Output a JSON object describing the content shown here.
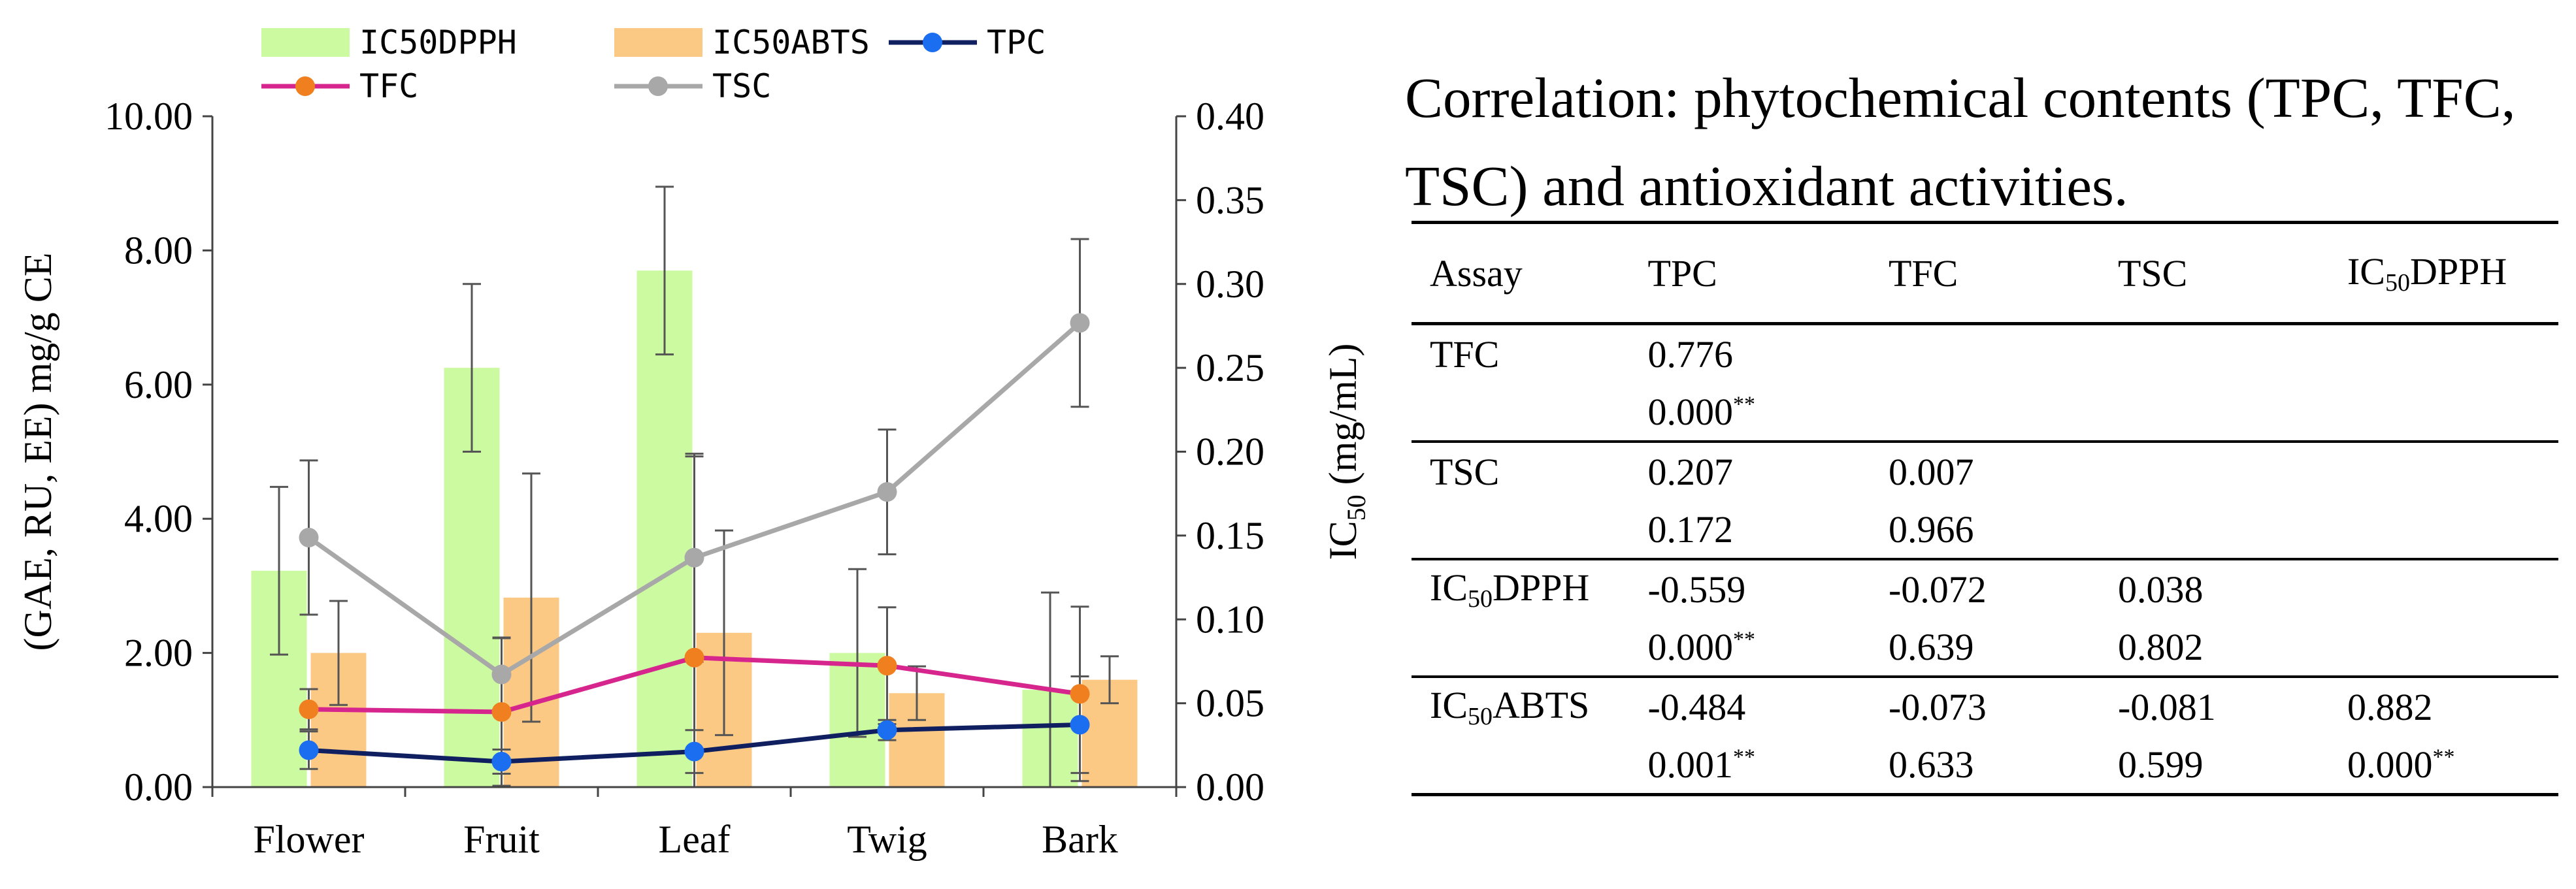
{
  "chart_data": {
    "type": "bar",
    "categories": [
      "Flower",
      "Fruit",
      "Leaf",
      "Twig",
      "Bark"
    ],
    "y_left": {
      "label": "(GAE, RU, EE) mg/g CE",
      "ylim": [
        0,
        10
      ],
      "ticks": [
        "0.00",
        "2.00",
        "4.00",
        "6.00",
        "8.00",
        "10.00"
      ]
    },
    "y_right": {
      "label_main": "IC",
      "label_sub": "50",
      "label_rest": " (mg/mL)",
      "ylim": [
        0,
        0.4
      ],
      "ticks": [
        "0.00",
        "0.05",
        "0.10",
        "0.15",
        "0.20",
        "0.25",
        "0.30",
        "0.35",
        "0.40"
      ]
    },
    "grid": false,
    "legend_position": "top",
    "bars": [
      {
        "name": "IC50DPPH",
        "axis": "right",
        "color": "#ccfaa0",
        "values": [
          0.129,
          0.25,
          0.308,
          0.08,
          0.058
        ],
        "errors": [
          0.05,
          0.05,
          0.05,
          0.05,
          0.058
        ]
      },
      {
        "name": "IC50ABTS",
        "axis": "right",
        "color": "#fcc985",
        "values": [
          0.08,
          0.113,
          0.092,
          0.056,
          0.064
        ],
        "errors": [
          0.031,
          0.074,
          0.061,
          0.016,
          0.014
        ]
      }
    ],
    "lines": [
      {
        "name": "TPC",
        "axis": "left",
        "color": "#0f1f60",
        "marker": "#1b6ef0",
        "values": [
          0.55,
          0.38,
          0.53,
          0.85,
          0.93
        ],
        "errors": [
          0.28,
          0.18,
          0.32,
          0.15,
          0.72
        ]
      },
      {
        "name": "TFC",
        "axis": "left",
        "color": "#d6268e",
        "marker": "#f07f20",
        "values": [
          1.16,
          1.12,
          1.93,
          1.81,
          1.39
        ],
        "errors": [
          0.3,
          1.1,
          3.0,
          0.87,
          1.3
        ]
      },
      {
        "name": "TSC",
        "axis": "left",
        "color": "#a8a8a8",
        "marker": "#a8a8a8",
        "values": [
          3.72,
          1.68,
          3.42,
          4.4,
          6.92
        ],
        "errors": [
          1.15,
          0.55,
          1.55,
          0.93,
          1.25
        ]
      }
    ]
  },
  "correlation": {
    "title": "Correlation: phytochemical contents (TPC, TFC, TSC) and antioxidant activities.",
    "significance": "**",
    "columns": [
      {
        "main": "Assay",
        "sub": "",
        "rest": ""
      },
      {
        "main": "TPC",
        "sub": "",
        "rest": ""
      },
      {
        "main": "TFC",
        "sub": "",
        "rest": ""
      },
      {
        "main": "TSC",
        "sub": "",
        "rest": ""
      },
      {
        "main": "IC",
        "sub": "50",
        "rest": "DPPH"
      }
    ],
    "rows": [
      {
        "label": {
          "main": "TFC",
          "sub": "",
          "rest": ""
        },
        "r": [
          "0.776",
          "",
          "",
          ""
        ],
        "p": [
          "0.000",
          "",
          "",
          ""
        ],
        "sig": [
          true,
          false,
          false,
          false
        ]
      },
      {
        "label": {
          "main": "TSC",
          "sub": "",
          "rest": ""
        },
        "r": [
          "0.207",
          "0.007",
          "",
          ""
        ],
        "p": [
          "0.172",
          "0.966",
          "",
          ""
        ],
        "sig": [
          false,
          false,
          false,
          false
        ]
      },
      {
        "label": {
          "main": "IC",
          "sub": "50",
          "rest": "DPPH"
        },
        "r": [
          "-0.559",
          "-0.072",
          "0.038",
          ""
        ],
        "p": [
          "0.000",
          "0.639",
          "0.802",
          ""
        ],
        "sig": [
          true,
          false,
          false,
          false
        ]
      },
      {
        "label": {
          "main": "IC",
          "sub": "50",
          "rest": "ABTS"
        },
        "r": [
          "-0.484",
          "-0.073",
          "-0.081",
          "0.882"
        ],
        "p": [
          "0.001",
          "0.633",
          "0.599",
          "0.000"
        ],
        "sig": [
          true,
          false,
          false,
          true
        ]
      }
    ]
  }
}
